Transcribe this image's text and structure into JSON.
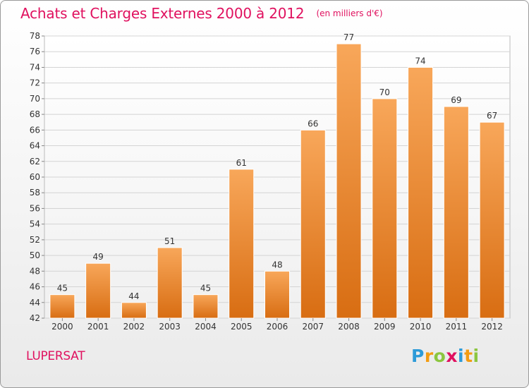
{
  "chart_data": {
    "type": "bar",
    "title": "Achats et Charges Externes 2000 à 2012",
    "unit_note": "(en milliers d'€)",
    "categories": [
      "2000",
      "2001",
      "2002",
      "2003",
      "2004",
      "2005",
      "2006",
      "2007",
      "2008",
      "2009",
      "2010",
      "2011",
      "2012"
    ],
    "values": [
      45,
      49,
      44,
      51,
      45,
      61,
      48,
      66,
      77,
      70,
      74,
      69,
      67
    ],
    "ylim": [
      42,
      78
    ],
    "yticks": [
      42,
      44,
      46,
      48,
      50,
      52,
      54,
      56,
      58,
      60,
      62,
      64,
      66,
      68,
      70,
      72,
      74,
      76,
      78
    ],
    "grid": true,
    "bar_color": "#f39a3c",
    "title_color": "#e0115f"
  },
  "commune": "LUPERSAT",
  "logo": {
    "text": "Proxiti",
    "letters": [
      "P",
      "r",
      "o",
      "x",
      "i",
      "t",
      "i"
    ]
  }
}
